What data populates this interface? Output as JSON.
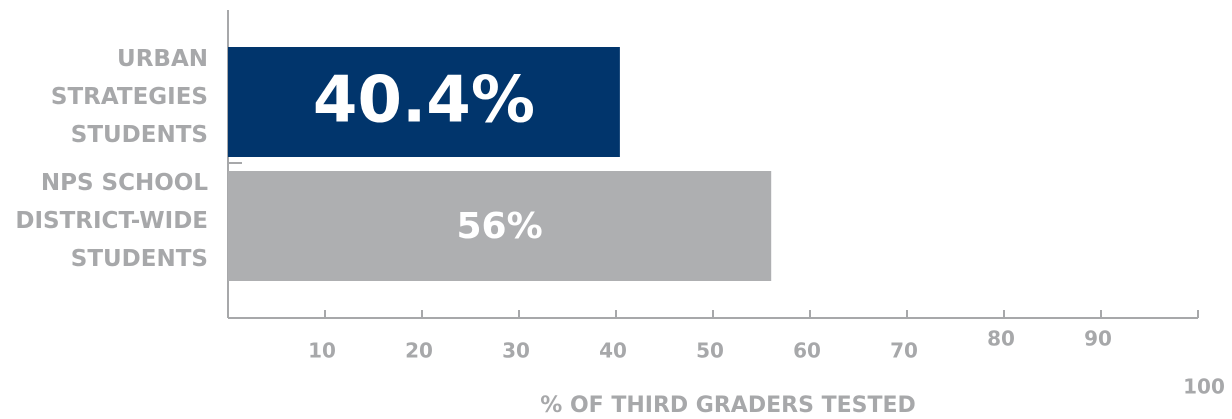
{
  "chart_data": {
    "type": "hbar",
    "categories": [
      "URBAN STRATEGIES STUDENTS",
      "NPS SCHOOL DISTRICT-WIDE STUDENTS"
    ],
    "values": [
      40.4,
      56
    ],
    "value_labels": [
      "40.4%",
      "56%"
    ],
    "colors": [
      "#01356c",
      "#aeafb1"
    ],
    "xlabel": "% OF THIRD GRADERS TESTED",
    "xlim": [
      0,
      100
    ],
    "xticks": [
      10,
      20,
      30,
      40,
      50,
      60,
      70,
      80,
      90,
      100
    ]
  }
}
